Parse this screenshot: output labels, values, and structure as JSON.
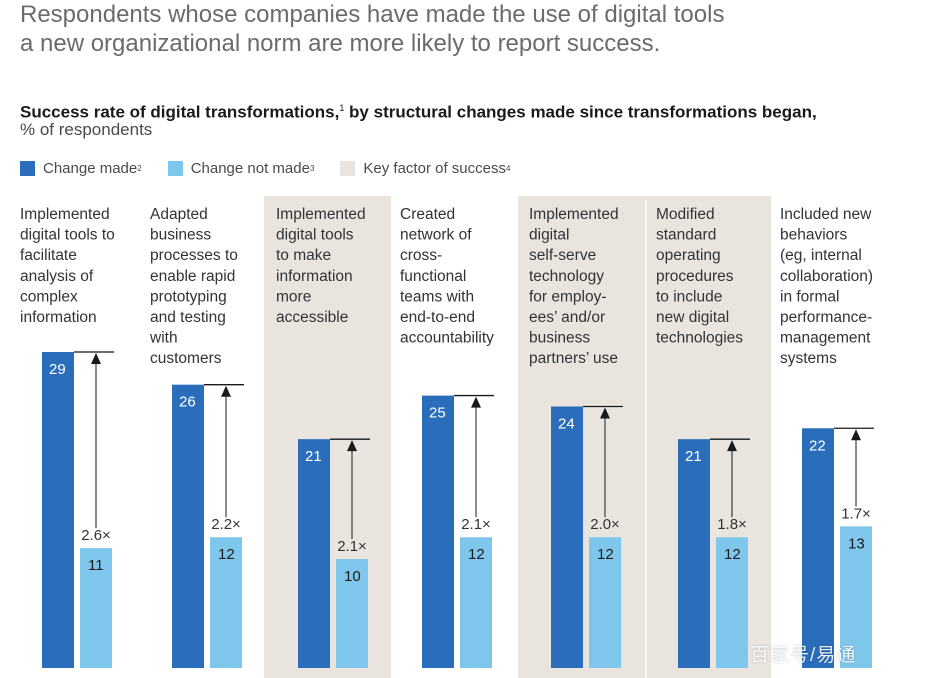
{
  "headline": {
    "line1": "Respondents whose companies have made the use of digital tools",
    "line2": "a new organizational norm are more likely to report success."
  },
  "subtitle": {
    "text": "Success rate of digital transformations,",
    "footnote": "1",
    "text_after": " by structural changes made since transformations began,",
    "unit": "% of respondents"
  },
  "legend": {
    "items": [
      {
        "label": "Change made",
        "footnote": "2",
        "color": "#2A6EBB"
      },
      {
        "label": "Change not made",
        "footnote": "3",
        "color": "#7FC6EC"
      },
      {
        "label": "Key factor of success",
        "footnote": "4",
        "color": "#E9E5DE"
      }
    ]
  },
  "watermark": "百家号/易通",
  "chart_data": {
    "type": "bar",
    "ylabel": "% of respondents",
    "categories": [
      [
        "Implemented",
        "digital tools to",
        "facilitate",
        "analysis of",
        "complex",
        "information"
      ],
      [
        "Adapted",
        "business",
        "processes to",
        "enable rapid",
        "prototyping",
        "and testing",
        "with",
        "customers"
      ],
      [
        "Implemented",
        "digital tools",
        "to make",
        "information",
        "more",
        "accessible"
      ],
      [
        "Created",
        "network of",
        "cross-",
        "functional",
        "teams with",
        "end-to-end",
        "accountability"
      ],
      [
        "Implemented",
        "digital",
        "self-serve",
        "technology",
        "for employ-",
        "ees’ and/or",
        "business",
        "partners’ use"
      ],
      [
        "Modified",
        "standard",
        "operating",
        "procedures",
        "to include",
        "new digital",
        "technologies"
      ],
      [
        "Included new",
        "behaviors",
        "(eg, internal",
        "collaboration)",
        "in formal",
        "performance-",
        "management",
        "systems"
      ]
    ],
    "series": [
      {
        "name": "Change made",
        "color": "#2A6EBB",
        "values": [
          29,
          26,
          21,
          25,
          24,
          21,
          22
        ]
      },
      {
        "name": "Change not made",
        "color": "#7FC6EC",
        "values": [
          11,
          12,
          10,
          12,
          12,
          12,
          13
        ]
      }
    ],
    "ratios": [
      "2.6×",
      "2.2×",
      "2.1×",
      "2.1×",
      "2.0×",
      "1.8×",
      "1.7×"
    ],
    "key_factor": [
      false,
      false,
      true,
      false,
      true,
      true,
      false
    ],
    "key_factor_color": "#E9E5DE",
    "ylim": [
      0,
      29
    ]
  }
}
